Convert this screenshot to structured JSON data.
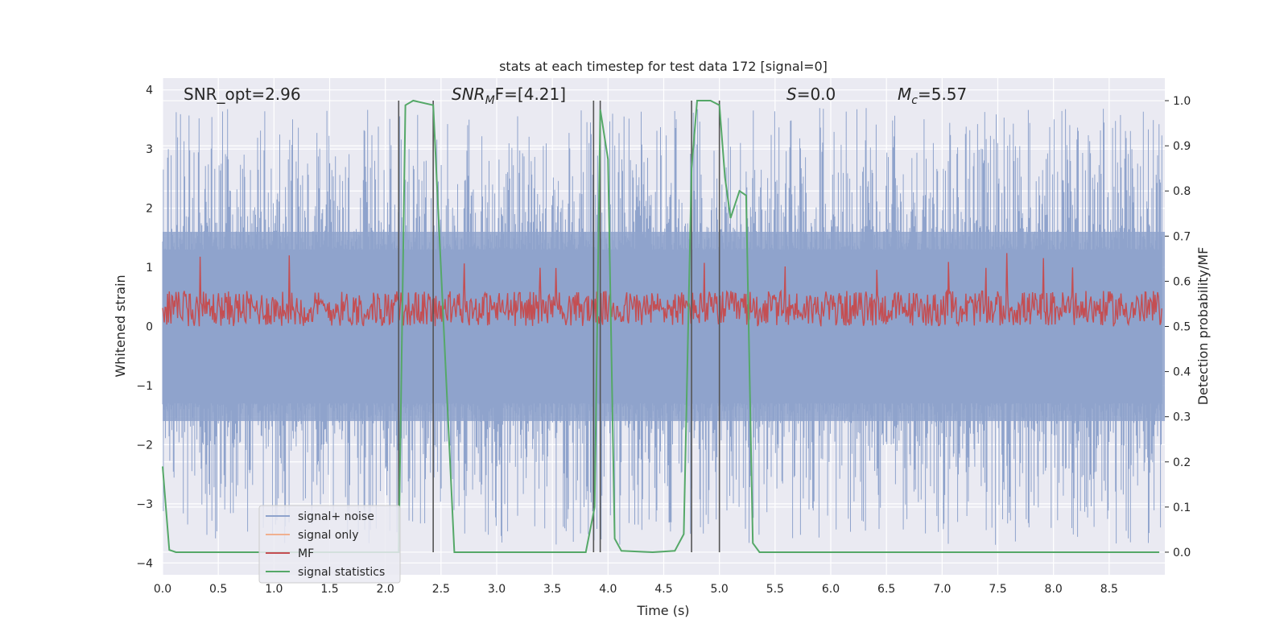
{
  "chart_data": {
    "type": "line",
    "title": "stats at each timestep for test data 172 [signal=0]",
    "xlabel": "Time (s)",
    "ylabel_left": "Whitened strain",
    "ylabel_right": "Detection probability/MF",
    "xlim": [
      0.0,
      9.0
    ],
    "ylim_left": [
      -4.2,
      4.2
    ],
    "ylim_right": [
      -0.05,
      1.05
    ],
    "grid": true,
    "background": "#eaeaf2",
    "x_ticks": [
      "0.0",
      "0.5",
      "1.0",
      "1.5",
      "2.0",
      "2.5",
      "3.0",
      "3.5",
      "4.0",
      "4.5",
      "5.0",
      "5.5",
      "6.0",
      "6.5",
      "7.0",
      "7.5",
      "8.0",
      "8.5"
    ],
    "y_left_ticks": [
      "4",
      "3",
      "2",
      "1",
      "0",
      "−1",
      "−2",
      "−3",
      "−4"
    ],
    "y_right_ticks": [
      "1.0",
      "0.9",
      "0.8",
      "0.7",
      "0.6",
      "0.5",
      "0.4",
      "0.3",
      "0.2",
      "0.1",
      "0.0"
    ],
    "annotations": {
      "snr_opt": "SNR_opt=2.96",
      "snr_mf_main": "SNR",
      "snr_mf_sub": "M",
      "snr_mf_rest": "F=[4.21]",
      "s_main": "S",
      "s_rest": "=0.0",
      "mc_main": "M",
      "mc_sub": "c",
      "mc_rest": "=5.57"
    },
    "legend": {
      "placement": "lower-left",
      "entries": [
        {
          "label": "signal+ noise",
          "color": "#8fa3cc"
        },
        {
          "label": "signal only",
          "color": "#f0b08f"
        },
        {
          "label": "MF",
          "color": "#c44e52"
        },
        {
          "label": "signal statistics",
          "color": "#55a868"
        }
      ]
    },
    "noise_band": {
      "description_free": true,
      "abs_envelope": 1.6,
      "peak_max": 3.7,
      "color": "#8fa3cc"
    },
    "mf_band": {
      "center": 0.3,
      "half_width": 0.3,
      "color": "#c44e52"
    },
    "vertical_lines_x": [
      2.12,
      2.43,
      3.87,
      3.93,
      4.75,
      5.0
    ],
    "signal_statistics": {
      "x": [
        0.0,
        0.06,
        0.12,
        2.12,
        2.18,
        2.25,
        2.43,
        2.62,
        3.8,
        3.88,
        3.93,
        4.0,
        4.06,
        4.12,
        4.4,
        4.6,
        4.68,
        4.75,
        4.8,
        4.86,
        4.92,
        5.0,
        5.05,
        5.1,
        5.18,
        5.24,
        5.3,
        5.36,
        8.95
      ],
      "y": [
        0.19,
        0.005,
        0.0,
        0.0,
        0.99,
        1.0,
        0.99,
        0.0,
        0.0,
        0.1,
        0.98,
        0.87,
        0.03,
        0.003,
        0.0,
        0.003,
        0.04,
        0.85,
        1.0,
        1.0,
        1.0,
        0.99,
        0.83,
        0.74,
        0.8,
        0.79,
        0.02,
        0.0,
        0.0
      ],
      "color": "#55a868"
    }
  }
}
